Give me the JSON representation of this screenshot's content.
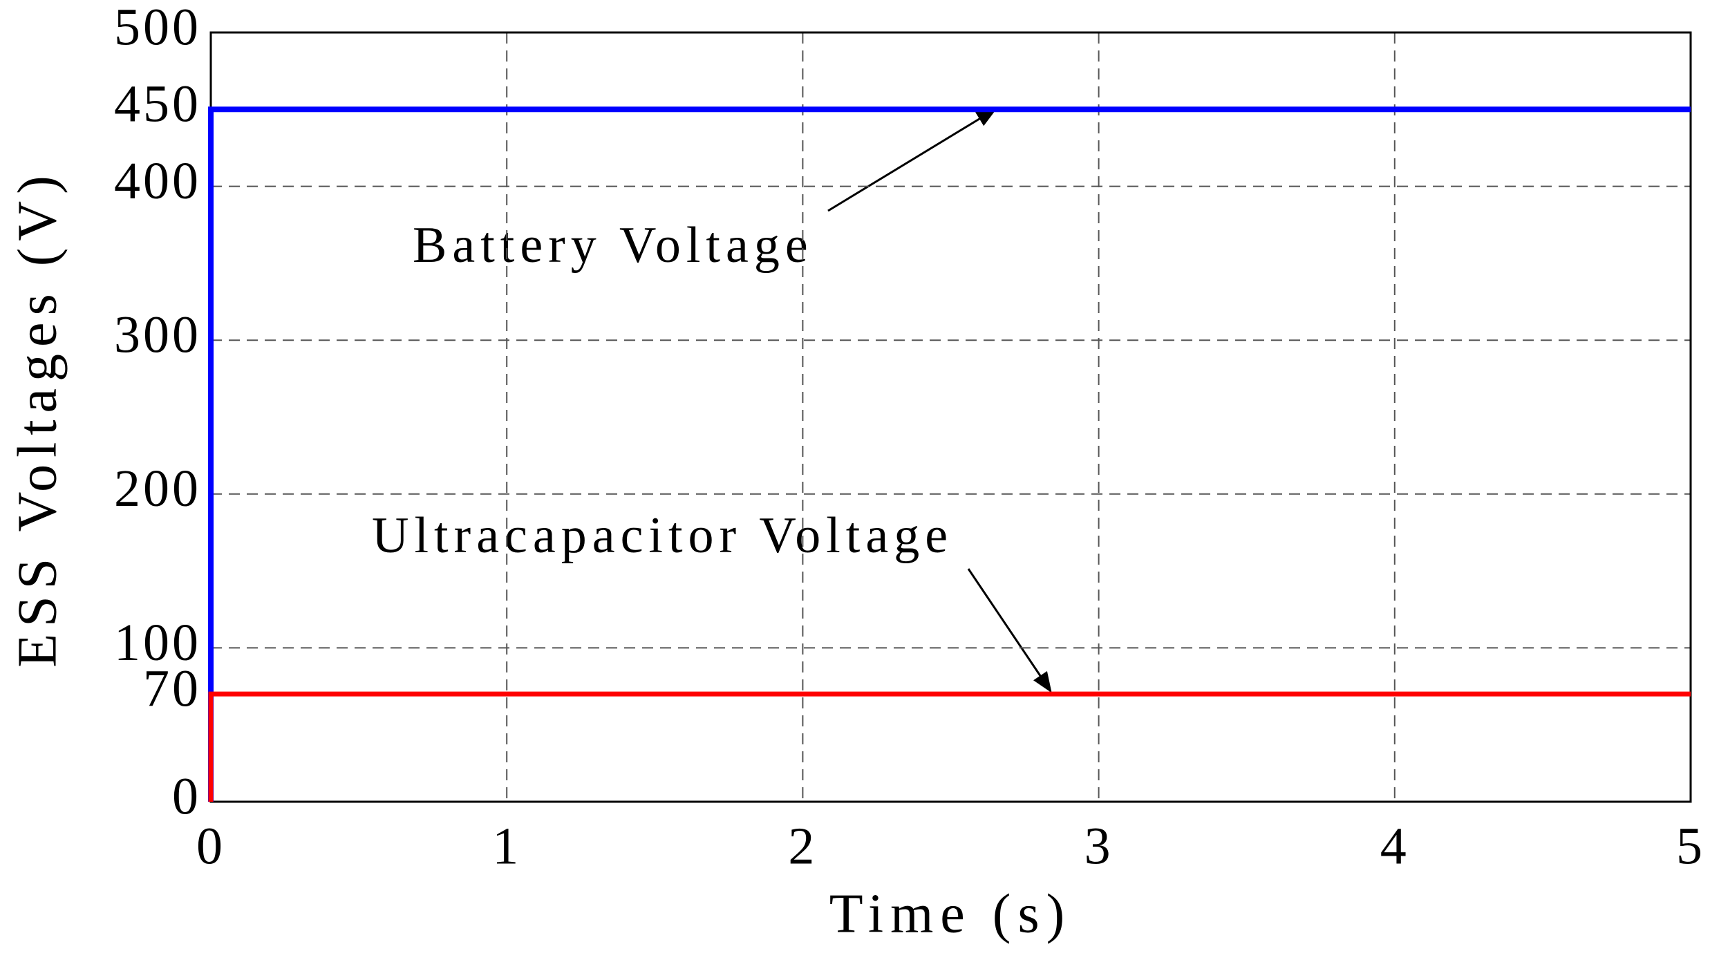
{
  "chart_data": {
    "type": "line",
    "xlabel": "Time (s)",
    "ylabel": "ESS Voltages (V)",
    "x": [
      0,
      0,
      5
    ],
    "series": [
      {
        "name": "Battery Voltage",
        "color": "#0000ff",
        "values": [
          0,
          450,
          450
        ]
      },
      {
        "name": "Ultracapacitor Voltage",
        "color": "#ff0000",
        "values": [
          0,
          70,
          70
        ]
      }
    ],
    "xlim": [
      0,
      5
    ],
    "xticks": [
      0,
      1,
      2,
      3,
      4,
      5
    ],
    "ylim": [
      0,
      500
    ],
    "yticks": [
      0,
      70,
      100,
      200,
      300,
      400,
      450,
      500
    ],
    "grid": true
  }
}
